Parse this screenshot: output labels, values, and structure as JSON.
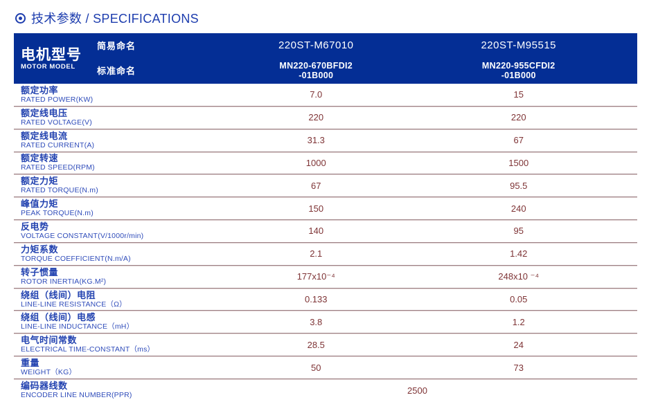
{
  "page_title": {
    "icon": "circle-dot",
    "text": "技术参数 / SPECIFICATIONS"
  },
  "table": {
    "header": {
      "motor_model_zh": "电机型号",
      "motor_model_en": "MOTOR MODEL",
      "simple_name_label": "简易命名",
      "standard_name_label": "标准命名",
      "columns": [
        {
          "simple_name": "220ST-M67010",
          "standard_name_line1": "MN220-670BFDI2",
          "standard_name_line2": "-01B000"
        },
        {
          "simple_name": "220ST-M95515",
          "standard_name_line1": "MN220-955CFDI2",
          "standard_name_line2": "-01B000"
        }
      ]
    },
    "rows": [
      {
        "zh": "额定功率",
        "en": "RATED POWER(KW)",
        "values": [
          "7.0",
          "15"
        ]
      },
      {
        "zh": "额定线电压",
        "en": "RATED VOLTAGE(V)",
        "values": [
          "220",
          "220"
        ]
      },
      {
        "zh": "额定线电流",
        "en": "RATED CURRENT(A)",
        "values": [
          "31.3",
          "67"
        ]
      },
      {
        "zh": "额定转速",
        "en": "RATED SPEED(RPM)",
        "values": [
          "1000",
          "1500"
        ]
      },
      {
        "zh": "额定力矩",
        "en": "RATED TORQUE(N.m)",
        "values": [
          "67",
          "95.5"
        ]
      },
      {
        "zh": "峰值力矩",
        "en": "PEAK TORQUE(N.m)",
        "values": [
          "150",
          "240"
        ]
      },
      {
        "zh": "反电势",
        "en": "VOLTAGE CONSTANT(V/1000r/min)",
        "values": [
          "140",
          "95"
        ]
      },
      {
        "zh": "力矩系数",
        "en": "TORQUE COEFFICIENT(N.m/A)",
        "values": [
          "2.1",
          "1.42"
        ]
      },
      {
        "zh": "转子惯量",
        "en": "ROTOR INERTIA(KG.M²)",
        "values": [
          "177x10⁻⁴",
          "248x10 ⁻⁴"
        ]
      },
      {
        "zh": "绕组（线间）电阻",
        "en": "LINE-LINE RESISTANCE（Ω）",
        "values": [
          "0.133",
          "0.05"
        ]
      },
      {
        "zh": "绕组（线间）电感",
        "en": "LINE-LINE INDUCTANCE（mH）",
        "values": [
          "3.8",
          "1.2"
        ]
      },
      {
        "zh": "电气时间常数",
        "en": "ELECTRICAL TIME-CONSTANT（ms）",
        "values": [
          "28.5",
          "24"
        ]
      },
      {
        "zh": "重量",
        "en": "WEIGHT（KG）",
        "values": [
          "50",
          "73"
        ]
      },
      {
        "zh": "编码器线数",
        "en": "ENCODER LINE NUMBER(PPR)",
        "values_span": "2500"
      }
    ],
    "colors": {
      "header_bg": "#042e95",
      "header_text": "#ffffff",
      "title_text": "#1d3dae",
      "label_zh_text": "#2343b0",
      "label_en_text": "#2f4cba",
      "value_text": "#7e3335",
      "divider": "#9c8084"
    }
  }
}
